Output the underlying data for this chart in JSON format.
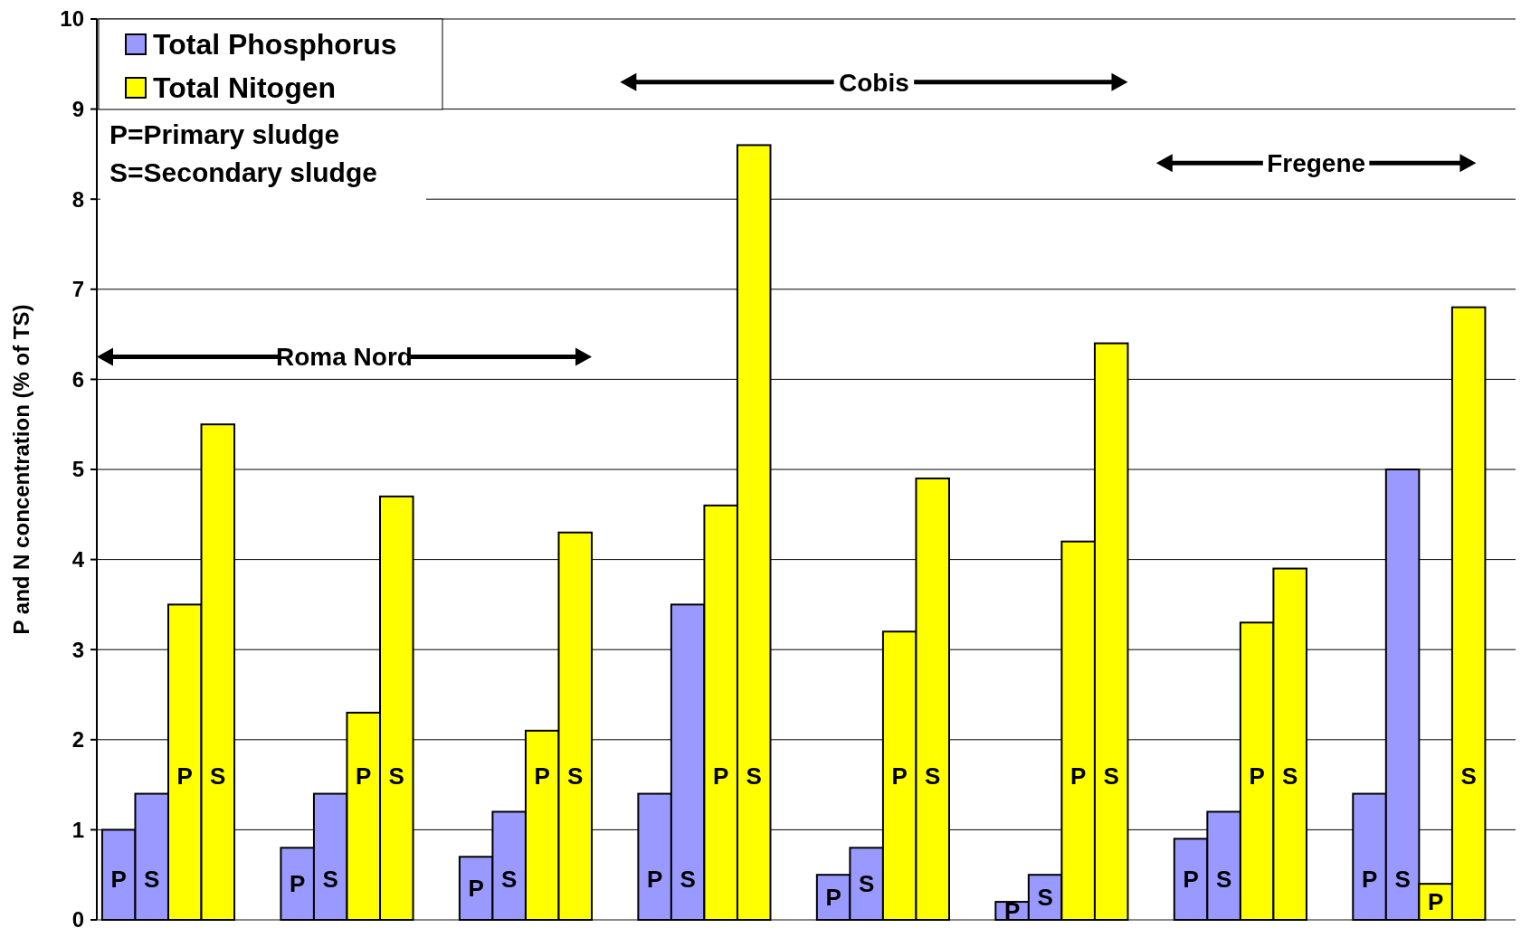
{
  "chart_data": {
    "type": "bar",
    "ylabel": "P and N concentration (% of TS)",
    "categories": [
      null,
      null,
      null,
      null,
      null,
      null,
      null,
      null
    ],
    "series": [
      {
        "name": "Total Phosphorus",
        "color": "#9999ff",
        "values": [
          1.0,
          0.8,
          0.7,
          1.4,
          0.5,
          0.2,
          0.9,
          1.4
        ],
        "value_labels": [
          "P",
          "P",
          "P",
          "P",
          "P",
          "P",
          "P",
          "P"
        ]
      },
      {
        "color": "#9999ff",
        "values": [
          1.4,
          1.4,
          1.2,
          3.5,
          0.8,
          0.5,
          1.2,
          5.0
        ],
        "value_labels": [
          "S",
          "S",
          "S",
          "S",
          "S",
          "S",
          "S",
          "S"
        ]
      },
      {
        "name": "Total Nitogen",
        "color": "#ffff00",
        "values": [
          3.5,
          2.3,
          2.1,
          4.6,
          3.2,
          4.2,
          3.3,
          0.4
        ],
        "value_labels": [
          "P",
          "P",
          "P",
          "P",
          "P",
          "P",
          "P",
          "P"
        ]
      },
      {
        "color": "#ffff00",
        "values": [
          5.5,
          4.7,
          4.3,
          8.6,
          4.9,
          6.4,
          3.9,
          6.8
        ],
        "value_labels": [
          "S",
          "S",
          "S",
          "S",
          "S",
          "S",
          "S",
          "S"
        ]
      }
    ],
    "ylim": [
      0,
      10
    ],
    "yticks": [
      0,
      1,
      2,
      3,
      4,
      5,
      6,
      7,
      8,
      9,
      10
    ],
    "grid": "y",
    "legend": "top left",
    "annotations": [
      "P=Primary sludge",
      "S=Secondary sludge",
      "Roma Nord",
      "Cobis",
      "Fregene"
    ]
  }
}
